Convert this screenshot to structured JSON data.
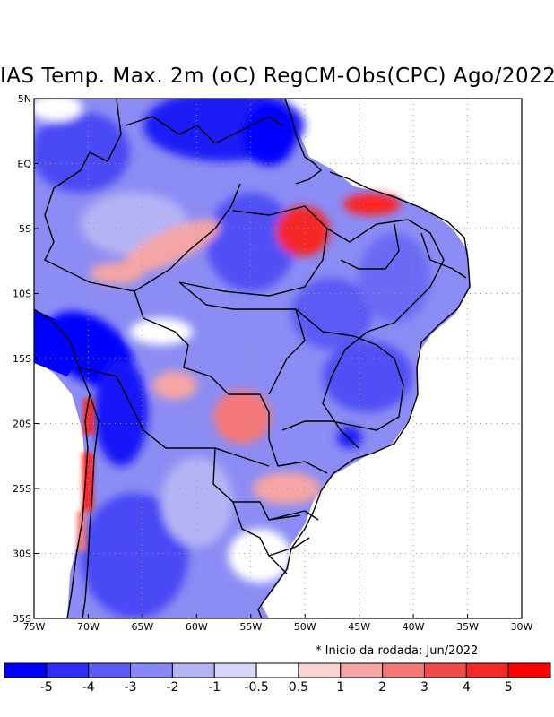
{
  "title": "IAS Temp. Max. 2m (oC) RegCM-Obs(CPC) Ago/2022",
  "footnote": "* Inicio da rodada: Jun/2022",
  "map": {
    "lon_labels": [
      "75W",
      "70W",
      "65W",
      "60W",
      "55W",
      "50W",
      "45W",
      "40W",
      "35W",
      "30W"
    ],
    "lat_labels": [
      "5N",
      "EQ",
      "5S",
      "10S",
      "15S",
      "20S",
      "25S",
      "30S",
      "35S"
    ],
    "lon_range": [
      -75,
      -30
    ],
    "lat_range": [
      -35,
      5
    ],
    "grid": "dotted"
  },
  "legend": {
    "labels": [
      "-5",
      "-4",
      "-3",
      "-2",
      "-1",
      "-0.5",
      "0.5",
      "1",
      "2",
      "3",
      "4",
      "5"
    ],
    "colors": [
      "#0000ff",
      "#2d2df5",
      "#5a5af5",
      "#8787f5",
      "#b4b4f5",
      "#d7d7fa",
      "#ffffff",
      "#fad2d2",
      "#f5a5a5",
      "#f57878",
      "#f04b4b",
      "#f52828",
      "#ff0000"
    ]
  }
}
